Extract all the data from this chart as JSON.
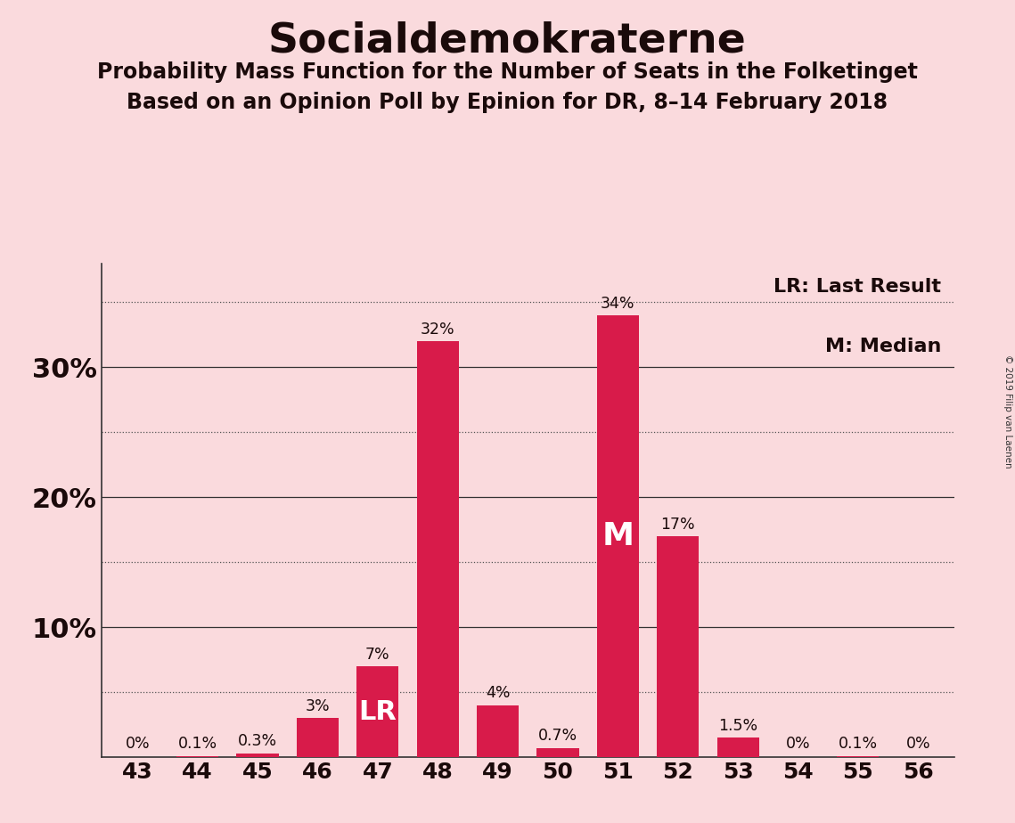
{
  "title": "Socialdemokraterne",
  "subtitle1": "Probability Mass Function for the Number of Seats in the Folketinget",
  "subtitle2": "Based on an Opinion Poll by Epinion for DR, 8–14 February 2018",
  "copyright": "© 2019 Filip van Laenen",
  "seats": [
    43,
    44,
    45,
    46,
    47,
    48,
    49,
    50,
    51,
    52,
    53,
    54,
    55,
    56
  ],
  "probabilities": [
    0.0,
    0.1,
    0.3,
    3.0,
    7.0,
    32.0,
    4.0,
    0.7,
    34.0,
    17.0,
    1.5,
    0.0,
    0.1,
    0.0
  ],
  "labels": [
    "0%",
    "0.1%",
    "0.3%",
    "3%",
    "7%",
    "32%",
    "4%",
    "0.7%",
    "34%",
    "17%",
    "1.5%",
    "0%",
    "0.1%",
    "0%"
  ],
  "bar_color": "#D81B4A",
  "background_color": "#FADADD",
  "title_color": "#1a0a0a",
  "text_color": "#1a0a0a",
  "lr_seat": 47,
  "median_seat": 51,
  "ylim": [
    0,
    38
  ],
  "legend_lr": "LR: Last Result",
  "legend_m": "M: Median"
}
